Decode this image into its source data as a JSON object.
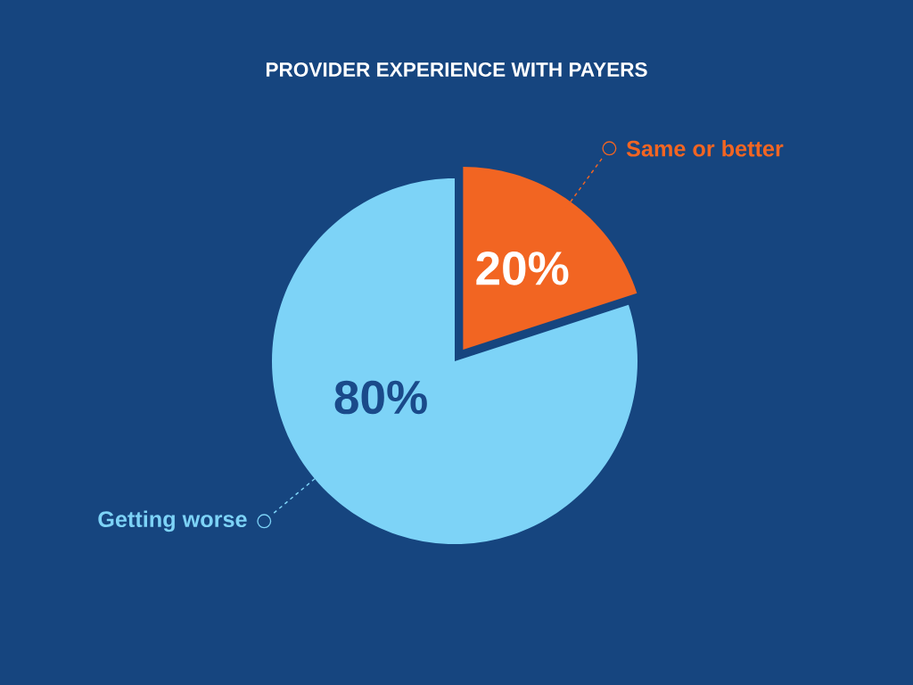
{
  "chart_data": {
    "type": "pie",
    "title": "PROVIDER EXPERIENCE WITH PAYERS",
    "categories": [
      "Same or better",
      "Getting worse"
    ],
    "values": [
      20,
      80
    ],
    "colors": [
      "#f26522",
      "#7dd3f7"
    ],
    "value_labels": [
      "20%",
      "80%"
    ]
  }
}
